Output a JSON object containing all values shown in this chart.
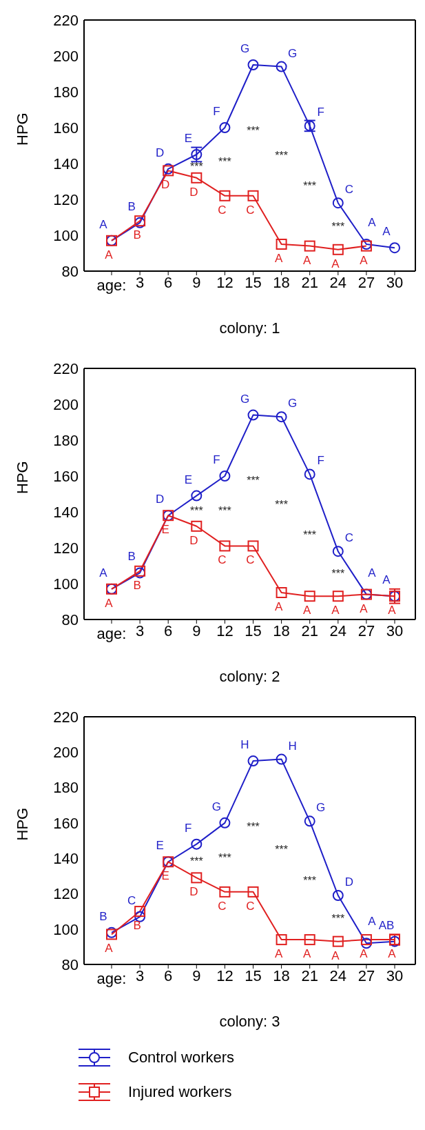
{
  "chart_data": [
    {
      "type": "line",
      "xlabel": "colony: 1",
      "ylabel": "HPG",
      "categories": [
        null,
        "3",
        "6",
        "9",
        "12",
        "15",
        "18",
        "21",
        "24",
        "27",
        "30"
      ],
      "ylim": [
        80,
        220
      ],
      "yticks": [
        80,
        100,
        120,
        140,
        160,
        180,
        200,
        220
      ],
      "grid": false,
      "legend": false,
      "series": [
        {
          "color": "#1f1fc8",
          "marker": "circle",
          "values": [
            97,
            107,
            137,
            145,
            160,
            195,
            194,
            161,
            118,
            95,
            93
          ],
          "errors": [
            null,
            null,
            null,
            4,
            null,
            null,
            null,
            3,
            null,
            null,
            null
          ],
          "value_labels": [
            "A",
            "B",
            "D",
            "E",
            "F",
            "G",
            "G",
            "F",
            "C",
            "A",
            "A"
          ]
        },
        {
          "color": "#e02020",
          "marker": "square",
          "values": [
            97,
            108,
            136,
            132,
            122,
            122,
            95,
            94,
            92,
            94,
            null
          ],
          "value_labels": [
            "A",
            "B",
            "D",
            "D",
            "C",
            "C",
            "A",
            "A",
            "A",
            "A",
            null
          ]
        }
      ],
      "annotations": [
        {
          "text": "age:"
        },
        "***",
        "***",
        "***",
        "***",
        "***",
        "***"
      ]
    },
    {
      "type": "line",
      "xlabel": "colony: 2",
      "ylabel": "HPG",
      "categories": [
        null,
        "3",
        "6",
        "9",
        "12",
        "15",
        "18",
        "21",
        "24",
        "27",
        "30"
      ],
      "ylim": [
        80,
        220
      ],
      "yticks": [
        80,
        100,
        120,
        140,
        160,
        180,
        200,
        220
      ],
      "grid": false,
      "legend": false,
      "series": [
        {
          "color": "#1f1fc8",
          "marker": "circle",
          "values": [
            97,
            106,
            138,
            149,
            160,
            194,
            193,
            161,
            118,
            94,
            93
          ],
          "value_labels": [
            "A",
            "B",
            "D",
            "E",
            "F",
            "G",
            "G",
            "F",
            "C",
            "A",
            "A"
          ]
        },
        {
          "color": "#e02020",
          "marker": "square",
          "values": [
            97,
            107,
            138,
            132,
            121,
            121,
            95,
            93,
            93,
            94,
            93
          ],
          "errors": [
            null,
            null,
            null,
            null,
            null,
            null,
            null,
            null,
            null,
            null,
            4
          ],
          "value_labels": [
            "A",
            "B",
            "E",
            "D",
            "C",
            "C",
            "A",
            "A",
            "A",
            "A",
            "A"
          ]
        }
      ],
      "annotations": [
        {
          "text": "age:"
        },
        "***",
        "***",
        "***",
        "***",
        "***",
        "***"
      ]
    },
    {
      "type": "line",
      "xlabel": "colony: 3",
      "ylabel": "HPG",
      "categories": [
        null,
        "3",
        "6",
        "9",
        "12",
        "15",
        "18",
        "21",
        "24",
        "27",
        "30"
      ],
      "ylim": [
        80,
        220
      ],
      "yticks": [
        80,
        100,
        120,
        140,
        160,
        180,
        200,
        220
      ],
      "grid": false,
      "legend": "bottom",
      "series": [
        {
          "name": "Control workers",
          "color": "#1f1fc8",
          "marker": "circle",
          "values": [
            98,
            107,
            138,
            148,
            160,
            195,
            196,
            161,
            119,
            92,
            93
          ],
          "value_labels": [
            "B",
            "C",
            "E",
            "F",
            "G",
            "H",
            "H",
            "G",
            "D",
            "A",
            "AB"
          ]
        },
        {
          "name": "Injured workers",
          "color": "#e02020",
          "marker": "square",
          "values": [
            97,
            110,
            138,
            129,
            121,
            121,
            94,
            94,
            93,
            94,
            94
          ],
          "errors": [
            null,
            null,
            null,
            null,
            null,
            null,
            null,
            null,
            null,
            null,
            3
          ],
          "value_labels": [
            "A",
            "B",
            "E",
            "D",
            "C",
            "C",
            "A",
            "A",
            "A",
            "A",
            "A"
          ]
        }
      ],
      "annotations": [
        {
          "text": "age:"
        },
        "***",
        "***",
        "***",
        "***",
        "***",
        "***"
      ]
    }
  ]
}
